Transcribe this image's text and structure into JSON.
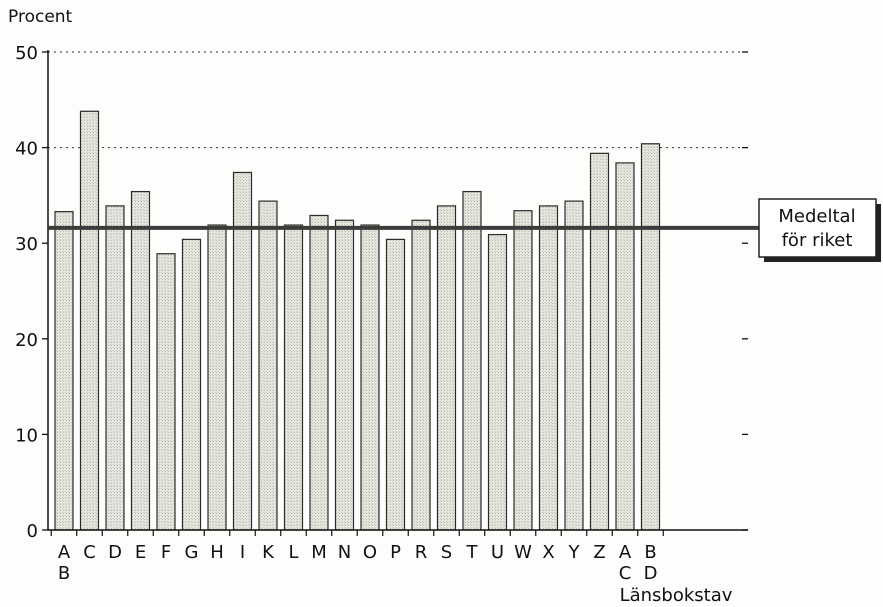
{
  "chart_data": {
    "type": "bar",
    "ylabel": "Procent",
    "xlabel": "Länsbokstav",
    "ylim": [
      0,
      50
    ],
    "yticks": [
      0,
      10,
      20,
      30,
      40,
      50
    ],
    "gridlines": [
      40,
      50
    ],
    "categories": [
      [
        "A",
        "B"
      ],
      [
        "C"
      ],
      [
        "D"
      ],
      [
        "E"
      ],
      [
        "F"
      ],
      [
        "G"
      ],
      [
        "H"
      ],
      [
        "I"
      ],
      [
        "K"
      ],
      [
        "L"
      ],
      [
        "M"
      ],
      [
        "N"
      ],
      [
        "O"
      ],
      [
        "P"
      ],
      [
        "R"
      ],
      [
        "S"
      ],
      [
        "T"
      ],
      [
        "U"
      ],
      [
        "W"
      ],
      [
        "X"
      ],
      [
        "Y"
      ],
      [
        "Z"
      ],
      [
        "A",
        "C"
      ],
      [
        "B",
        "D"
      ]
    ],
    "values": [
      33.3,
      43.8,
      33.9,
      35.4,
      28.9,
      30.4,
      31.9,
      37.4,
      34.4,
      31.9,
      32.9,
      32.4,
      31.9,
      30.4,
      32.4,
      33.9,
      35.4,
      30.9,
      33.4,
      33.9,
      34.4,
      39.4,
      38.4,
      40.4
    ],
    "reference_line": {
      "value": 31.6,
      "label": [
        "Medeltal",
        "för riket"
      ]
    },
    "colors": {
      "bar_fill": "#dcdcd4",
      "bar_stroke": "#2a2a2a",
      "mean_line": "#3c3c3c",
      "grid": "#333333"
    }
  }
}
